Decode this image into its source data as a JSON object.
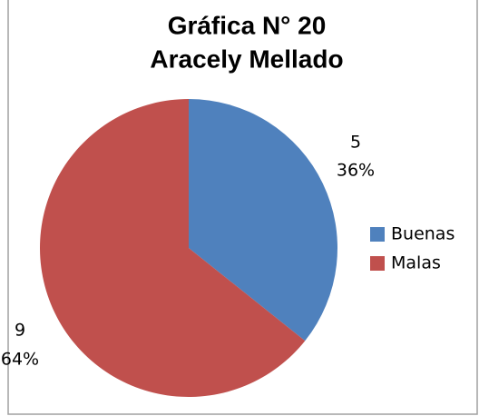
{
  "chart_data": {
    "type": "pie",
    "title_lines": [
      "Gráfica N° 20",
      "Aracely Mellado"
    ],
    "categories": [
      "Buenas",
      "Malas"
    ],
    "values": [
      5,
      9
    ],
    "percent_labels": [
      "36%",
      "64%"
    ],
    "colors": [
      "#4f81bd",
      "#c0504d"
    ],
    "legend": "right"
  }
}
